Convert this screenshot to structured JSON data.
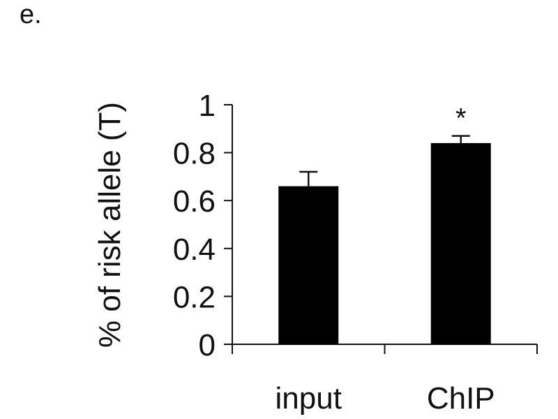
{
  "panel_label": "e.",
  "chart_data": {
    "type": "bar",
    "categories": [
      "input",
      "ChIP"
    ],
    "values": [
      0.66,
      0.84
    ],
    "errors": [
      0.06,
      0.03
    ],
    "significance": [
      "",
      "*"
    ],
    "ylabel": "% of risk allele (T)",
    "xlabel": "",
    "title": "",
    "ylim": [
      0,
      1
    ],
    "yticks": [
      0,
      0.2,
      0.4,
      0.6,
      0.8,
      1
    ],
    "ytick_labels": [
      "0",
      "0.2",
      "0.4",
      "0.6",
      "0.8",
      "1"
    ],
    "grid": false,
    "legend": "none",
    "bar_color": "#000000"
  }
}
